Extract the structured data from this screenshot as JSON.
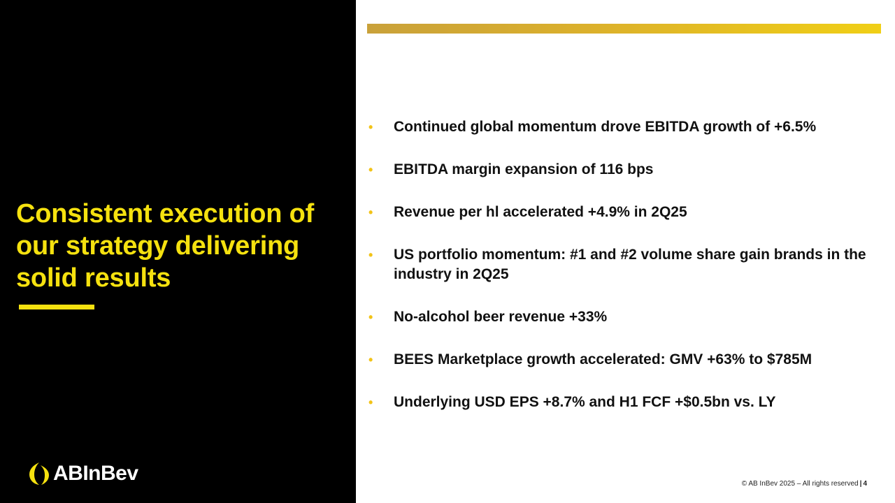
{
  "headline": "Consistent execution of our strategy delivering solid results",
  "bullets": [
    "Continued global momentum drove EBITDA growth of +6.5%",
    "EBITDA margin expansion of 116 bps",
    "Revenue per hl accelerated +4.9% in 2Q25",
    "US portfolio momentum: #1 and #2 volume share gain brands in the industry in 2Q25",
    "No-alcohol beer revenue +33%",
    "BEES Marketplace growth accelerated: GMV +63% to $785M",
    "Underlying USD EPS +8.7% and H1 FCF +$0.5bn vs. LY"
  ],
  "bullet_glyph": "•",
  "logo": {
    "text": "ABInBev",
    "icon": "abinbev-logo-icon"
  },
  "footer": {
    "copyright": "© AB InBev 2025 – All rights reserved",
    "separator": "|",
    "page_number": "4"
  },
  "colors": {
    "accent_yellow": "#f5e10f",
    "panel_black": "#000000",
    "bullet_gold": "#f2c318"
  }
}
